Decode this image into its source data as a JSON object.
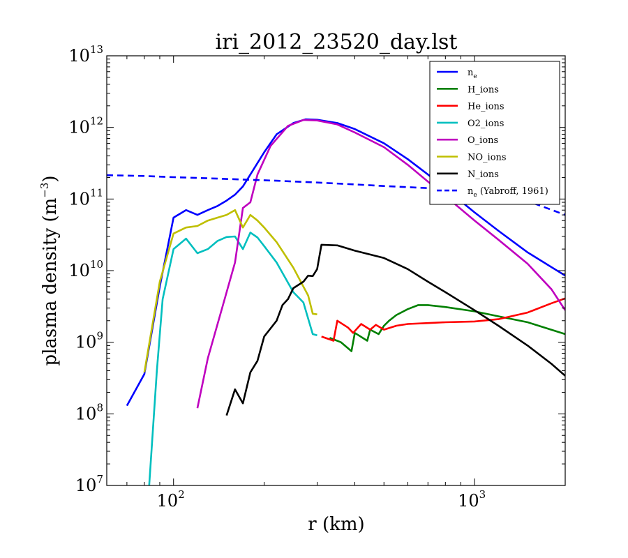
{
  "chart_data": {
    "type": "line",
    "title": "iri_2012_23520_day.lst",
    "xlabel": "r (km)",
    "ylabel": "plasma density (m",
    "ylabel_exp": "−3",
    "ylabel_close": ")",
    "xscale": "log",
    "yscale": "log",
    "xlim": [
      60,
      2000
    ],
    "ylim": [
      10000000,
      10000000000000
    ],
    "x_ticks": [
      {
        "value": 100,
        "base": "10",
        "exp": "2"
      },
      {
        "value": 1000,
        "base": "10",
        "exp": "3"
      }
    ],
    "y_ticks": [
      {
        "value": 10000000,
        "base": "10",
        "exp": "7"
      },
      {
        "value": 100000000,
        "base": "10",
        "exp": "8"
      },
      {
        "value": 1000000000,
        "base": "10",
        "exp": "9"
      },
      {
        "value": 10000000000,
        "base": "10",
        "exp": "10"
      },
      {
        "value": 100000000000,
        "base": "10",
        "exp": "11"
      },
      {
        "value": 1000000000000,
        "base": "10",
        "exp": "12"
      },
      {
        "value": 10000000000000,
        "base": "10",
        "exp": "13"
      }
    ],
    "grid": false,
    "legend_position": "top-right",
    "series": [
      {
        "name": "n",
        "name_sub": "e",
        "color": "#0000ff",
        "dash": "solid",
        "points": [
          [
            70,
            130000000.0
          ],
          [
            80,
            360000000.0
          ],
          [
            90,
            6000000000.0
          ],
          [
            100,
            55000000000.0
          ],
          [
            110,
            70000000000.0
          ],
          [
            120,
            60000000000.0
          ],
          [
            130,
            70000000000.0
          ],
          [
            140,
            80000000000.0
          ],
          [
            150,
            95000000000.0
          ],
          [
            160,
            115000000000.0
          ],
          [
            170,
            150000000000.0
          ],
          [
            180,
            220000000000.0
          ],
          [
            200,
            450000000000.0
          ],
          [
            220,
            800000000000.0
          ],
          [
            250,
            1150000000000.0
          ],
          [
            275,
            1300000000000.0
          ],
          [
            300,
            1280000000000.0
          ],
          [
            350,
            1150000000000.0
          ],
          [
            400,
            950000000000.0
          ],
          [
            500,
            600000000000.0
          ],
          [
            600,
            360000000000.0
          ],
          [
            700,
            220000000000.0
          ],
          [
            800,
            140000000000.0
          ],
          [
            1000,
            65000000000.0
          ],
          [
            1200,
            36000000000.0
          ],
          [
            1500,
            18000000000.0
          ],
          [
            2000,
            8500000000.0
          ]
        ]
      },
      {
        "name": "H_ions",
        "color": "#008000",
        "dash": "solid",
        "segments": [
          [
            [
              330,
              1150000000.0
            ],
            [
              360,
              1000000000.0
            ],
            [
              390,
              750000000.0
            ],
            [
              400,
              1350000000.0
            ],
            [
              440,
              1050000000.0
            ],
            [
              450,
              1500000000.0
            ],
            [
              480,
              1300000000.0
            ],
            [
              500,
              1700000000.0
            ],
            [
              520,
              2000000000.0
            ],
            [
              550,
              2400000000.0
            ],
            [
              600,
              2900000000.0
            ],
            [
              650,
              3300000000.0
            ],
            [
              700,
              3300000000.0
            ],
            [
              800,
              3100000000.0
            ],
            [
              1000,
              2700000000.0
            ],
            [
              1200,
              2300000000.0
            ],
            [
              1500,
              1900000000.0
            ],
            [
              2000,
              1300000000.0
            ]
          ]
        ]
      },
      {
        "name": "He_ions",
        "color": "#ff0000",
        "dash": "solid",
        "segments": [
          [
            [
              310,
              1200000000.0
            ],
            [
              340,
              1050000000.0
            ],
            [
              350,
              2000000000.0
            ],
            [
              380,
              1600000000.0
            ],
            [
              395,
              1350000000.0
            ],
            [
              420,
              1800000000.0
            ],
            [
              450,
              1500000000.0
            ],
            [
              470,
              1750000000.0
            ],
            [
              500,
              1500000000.0
            ],
            [
              550,
              1700000000.0
            ],
            [
              600,
              1800000000.0
            ],
            [
              700,
              1850000000.0
            ],
            [
              800,
              1900000000.0
            ],
            [
              1000,
              1950000000.0
            ],
            [
              1200,
              2100000000.0
            ],
            [
              1500,
              2600000000.0
            ],
            [
              1800,
              3500000000.0
            ],
            [
              2000,
              4100000000.0
            ]
          ]
        ]
      },
      {
        "name": "O2_ions",
        "color": "#00bfbf",
        "dash": "solid",
        "points": [
          [
            83,
            10000000.0
          ],
          [
            88,
            400000000.0
          ],
          [
            92,
            4000000000.0
          ],
          [
            100,
            20000000000.0
          ],
          [
            110,
            28000000000.0
          ],
          [
            120,
            17500000000.0
          ],
          [
            130,
            20000000000.0
          ],
          [
            140,
            26000000000.0
          ],
          [
            150,
            29500000000.0
          ],
          [
            160,
            30000000000.0
          ],
          [
            170,
            20000000000.0
          ],
          [
            180,
            34000000000.0
          ],
          [
            190,
            29000000000.0
          ],
          [
            200,
            22000000000.0
          ],
          [
            220,
            13000000000.0
          ],
          [
            250,
            5000000000.0
          ],
          [
            270,
            3600000000.0
          ],
          [
            290,
            1300000000.0
          ],
          [
            300,
            1250000000.0
          ]
        ]
      },
      {
        "name": "O_ions",
        "color": "#bf00bf",
        "dash": "solid",
        "points": [
          [
            120,
            120000000.0
          ],
          [
            130,
            600000000.0
          ],
          [
            145,
            3000000000.0
          ],
          [
            160,
            13000000000.0
          ],
          [
            170,
            75000000000.0
          ],
          [
            180,
            90000000000.0
          ],
          [
            190,
            220000000000.0
          ],
          [
            210,
            550000000000.0
          ],
          [
            240,
            1050000000000.0
          ],
          [
            270,
            1270000000000.0
          ],
          [
            300,
            1250000000000.0
          ],
          [
            350,
            1100000000000.0
          ],
          [
            400,
            850000000000.0
          ],
          [
            500,
            530000000000.0
          ],
          [
            600,
            300000000000.0
          ],
          [
            700,
            175000000000.0
          ],
          [
            800,
            110000000000.0
          ],
          [
            1000,
            50000000000.0
          ],
          [
            1200,
            27000000000.0
          ],
          [
            1500,
            12500000000.0
          ],
          [
            1800,
            5500000000.0
          ],
          [
            2000,
            2800000000.0
          ]
        ]
      },
      {
        "name": "NO_ions",
        "color": "#bfbf00",
        "dash": "solid",
        "points": [
          [
            80,
            380000000.0
          ],
          [
            90,
            7000000000.0
          ],
          [
            100,
            33000000000.0
          ],
          [
            110,
            40000000000.0
          ],
          [
            120,
            42000000000.0
          ],
          [
            130,
            50000000000.0
          ],
          [
            140,
            55000000000.0
          ],
          [
            150,
            60000000000.0
          ],
          [
            160,
            70000000000.0
          ],
          [
            170,
            40000000000.0
          ],
          [
            180,
            60000000000.0
          ],
          [
            190,
            50000000000.0
          ],
          [
            200,
            40000000000.0
          ],
          [
            220,
            25000000000.0
          ],
          [
            250,
            11000000000.0
          ],
          [
            280,
            4500000000.0
          ],
          [
            290,
            2500000000.0
          ],
          [
            300,
            2450000000.0
          ]
        ]
      },
      {
        "name": "N_ions",
        "color": "#000000",
        "dash": "solid",
        "points": [
          [
            150,
            95000000.0
          ],
          [
            160,
            220000000.0
          ],
          [
            170,
            140000000.0
          ],
          [
            180,
            380000000.0
          ],
          [
            190,
            550000000.0
          ],
          [
            200,
            1200000000.0
          ],
          [
            220,
            2000000000.0
          ],
          [
            230,
            3300000000.0
          ],
          [
            240,
            4000000000.0
          ],
          [
            250,
            5700000000.0
          ],
          [
            270,
            7000000000.0
          ],
          [
            280,
            8500000000.0
          ],
          [
            290,
            8400000000.0
          ],
          [
            300,
            10500000000.0
          ],
          [
            310,
            23000000000.0
          ],
          [
            350,
            22500000000.0
          ],
          [
            400,
            19000000000.0
          ],
          [
            500,
            15000000000.0
          ],
          [
            600,
            10500000000.0
          ],
          [
            700,
            7000000000.0
          ],
          [
            800,
            5000000000.0
          ],
          [
            1000,
            2800000000.0
          ],
          [
            1200,
            1700000000.0
          ],
          [
            1500,
            900000000.0
          ],
          [
            1800,
            500000000.0
          ],
          [
            2000,
            340000000.0
          ]
        ]
      },
      {
        "name": "n",
        "name_sub": "e",
        "name_suffix": " (Yabroff, 1961)",
        "color": "#0000ff",
        "dash": "dashed",
        "points": [
          [
            60,
            215000000000.0
          ],
          [
            80,
            210000000000.0
          ],
          [
            100,
            202000000000.0
          ],
          [
            130,
            195000000000.0
          ],
          [
            170,
            187000000000.0
          ],
          [
            220,
            180000000000.0
          ],
          [
            300,
            170000000000.0
          ],
          [
            400,
            160000000000.0
          ],
          [
            500,
            152000000000.0
          ],
          [
            700,
            142000000000.0
          ],
          [
            1000,
            128000000000.0
          ],
          [
            1300,
            110000000000.0
          ],
          [
            1600,
            85000000000.0
          ],
          [
            2000,
            60000000000.0
          ]
        ]
      }
    ]
  }
}
